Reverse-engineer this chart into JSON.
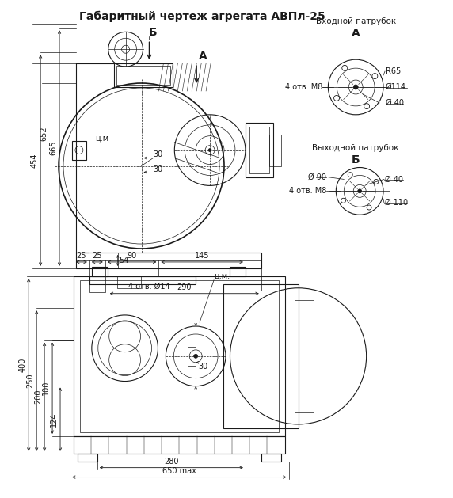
{
  "title": "Габаритный чертеж агрегата АВПл-25",
  "title_fontsize": 10,
  "bg_color": "#ffffff",
  "line_color": "#1a1a1a",
  "text_fontsize": 7.5,
  "small_fontsize": 7,
  "label_A": "А",
  "label_B": "Б",
  "inlet_label": "Входной патрубок",
  "outlet_label": "Выходной патрубок",
  "inlet_r65": "R65",
  "inlet_d114": "Ø114",
  "inlet_d40": "Ø 40",
  "inlet_m8": "4 отв. M8",
  "outlet_d90": "Ø 90",
  "outlet_d40": "Ø 40",
  "outlet_d110": "Ø 110",
  "outlet_m8": "4 отв. M8",
  "dim_665": "665",
  "dim_652": "652",
  "dim_454": "454",
  "dim_54": "54",
  "dim_30a": "30",
  "dim_30b": "30",
  "dim_290": "290",
  "dim_4otv14": "4 отв. Ø14",
  "dim_25a": "25",
  "dim_25b": "25",
  "dim_90": "90",
  "dim_145": "145",
  "dim_100": "100",
  "dim_200": "200",
  "dim_250": "250",
  "dim_400": "400",
  "dim_124": "124",
  "dim_280": "280",
  "dim_650": "650 max",
  "tsm_front": "ц.м",
  "tsm_side": "ц.м."
}
